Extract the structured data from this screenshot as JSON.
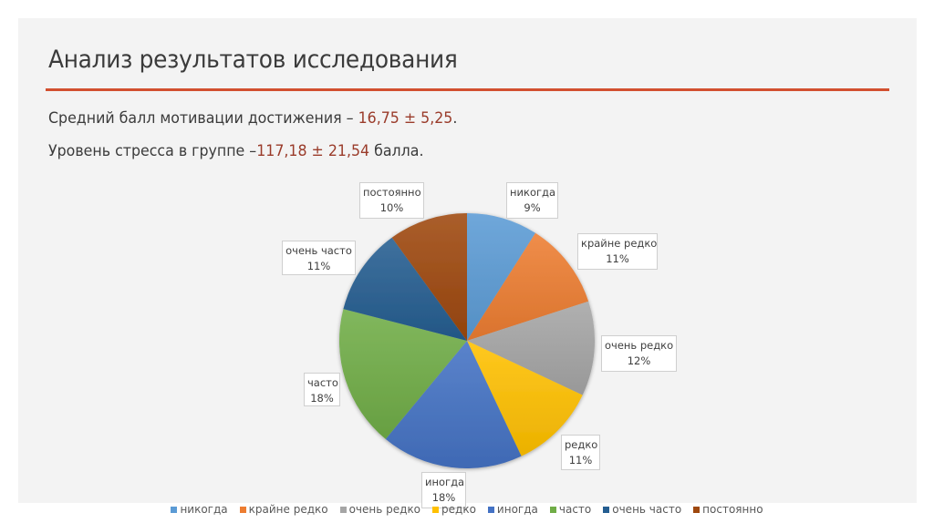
{
  "slide": {
    "title": "Анализ результатов исследования",
    "accent_color": "#d2502f",
    "line1": {
      "text": "Средний балл мотивации достижения – ",
      "value": "16,75 ± 5,25",
      "suffix": "."
    },
    "line2": {
      "text": "Уровень стресса в группе –",
      "value": "117,18 ± 21,54",
      "suffix": " балла."
    }
  },
  "chart_data": {
    "type": "pie",
    "title": "",
    "categories": [
      "никогда",
      "крайне редко",
      "очень редко",
      "редко",
      "иногда",
      "часто",
      "очень часто",
      "постоянно"
    ],
    "values": [
      9,
      11,
      12,
      11,
      18,
      18,
      11,
      10
    ],
    "labels": [
      "9%",
      "11%",
      "12%",
      "11%",
      "18%",
      "18%",
      "11%",
      "10%"
    ],
    "colors": [
      "#5b9bd5",
      "#ed7d31",
      "#a5a5a5",
      "#ffc000",
      "#4472c4",
      "#70ad47",
      "#255e91",
      "#9e480e"
    ],
    "legend_position": "bottom",
    "start_angle": 0,
    "direction": "clockwise",
    "data_labels": "category name and percentage, callout boxes"
  }
}
